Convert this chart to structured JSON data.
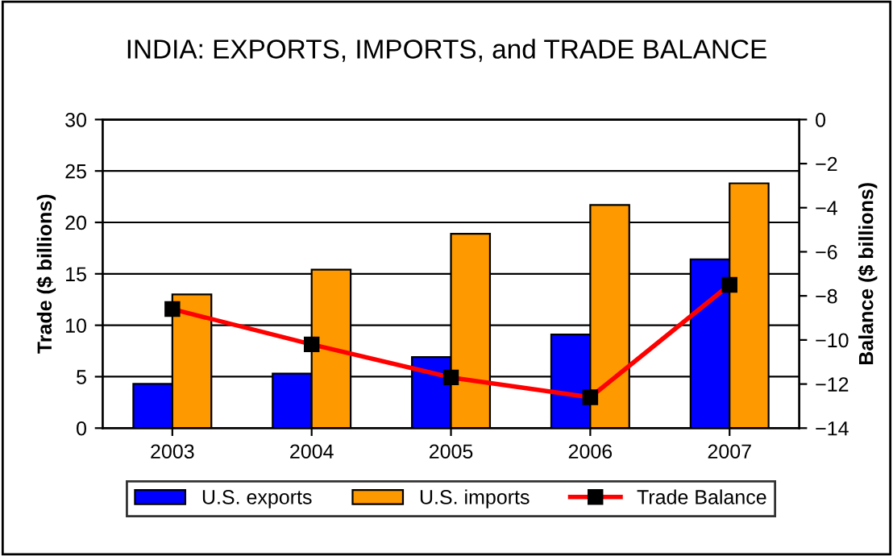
{
  "chart_data": {
    "type": "bar",
    "title": "INDIA: EXPORTS, IMPORTS, and TRADE BALANCE",
    "ylabel": "Trade ($ billions)",
    "y2label": "Balance ($ billions)",
    "categories": [
      "2003",
      "2004",
      "2005",
      "2006",
      "2007"
    ],
    "series": [
      {
        "name": "U.S. exports",
        "color": "#0000ff",
        "values": [
          4.3,
          5.3,
          6.9,
          9.1,
          16.4
        ]
      },
      {
        "name": "U.S. imports",
        "color": "#ff9900",
        "values": [
          13,
          15.4,
          18.9,
          21.7,
          23.8
        ]
      },
      {
        "name": "Trade Balance",
        "type": "line",
        "axis": "y2",
        "color": "#ff0000",
        "marker": "square",
        "values": [
          -8.6,
          -10.2,
          -11.7,
          -12.6,
          -7.5
        ]
      }
    ],
    "ylim": [
      0,
      30
    ],
    "yticks": [
      0,
      5,
      10,
      15,
      20,
      25,
      30
    ],
    "y2lim": [
      -14,
      0
    ],
    "y2ticks": [
      -14,
      -12,
      -10,
      -8,
      -6,
      -4,
      -2,
      0
    ],
    "grid": "y",
    "legend": "bottom"
  }
}
